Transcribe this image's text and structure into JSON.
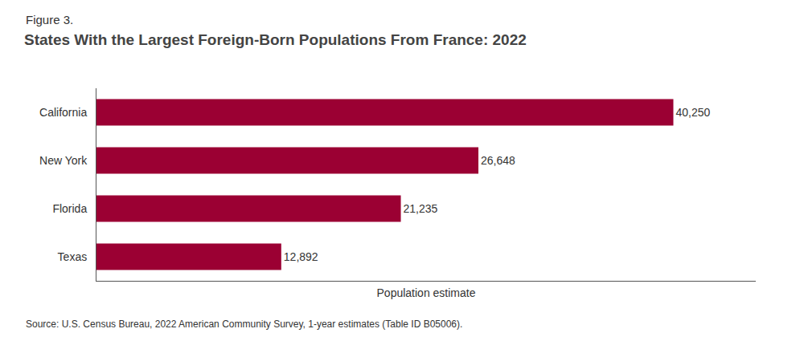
{
  "chart_data": {
    "type": "bar",
    "orientation": "horizontal",
    "title": "States With the Largest Foreign-Born Populations From France: 2022",
    "annotations": [
      "Figure 3.",
      "Source: U.S. Census Bureau, 2022 American Community Survey, 1-year estimates (Table ID B05006)."
    ],
    "xlabel": "Population estimate",
    "categories": [
      "Texas",
      "Florida",
      "New York",
      "California"
    ],
    "values": [
      12892,
      21235,
      26648,
      40250
    ],
    "value_labels": [
      "12,892",
      "21,235",
      "26,648",
      "40,250"
    ],
    "data_labels": true,
    "color": "#9B0033",
    "xlim": [
      0,
      46000
    ],
    "xticks": [],
    "tick_labels": "y",
    "grid": false
  }
}
